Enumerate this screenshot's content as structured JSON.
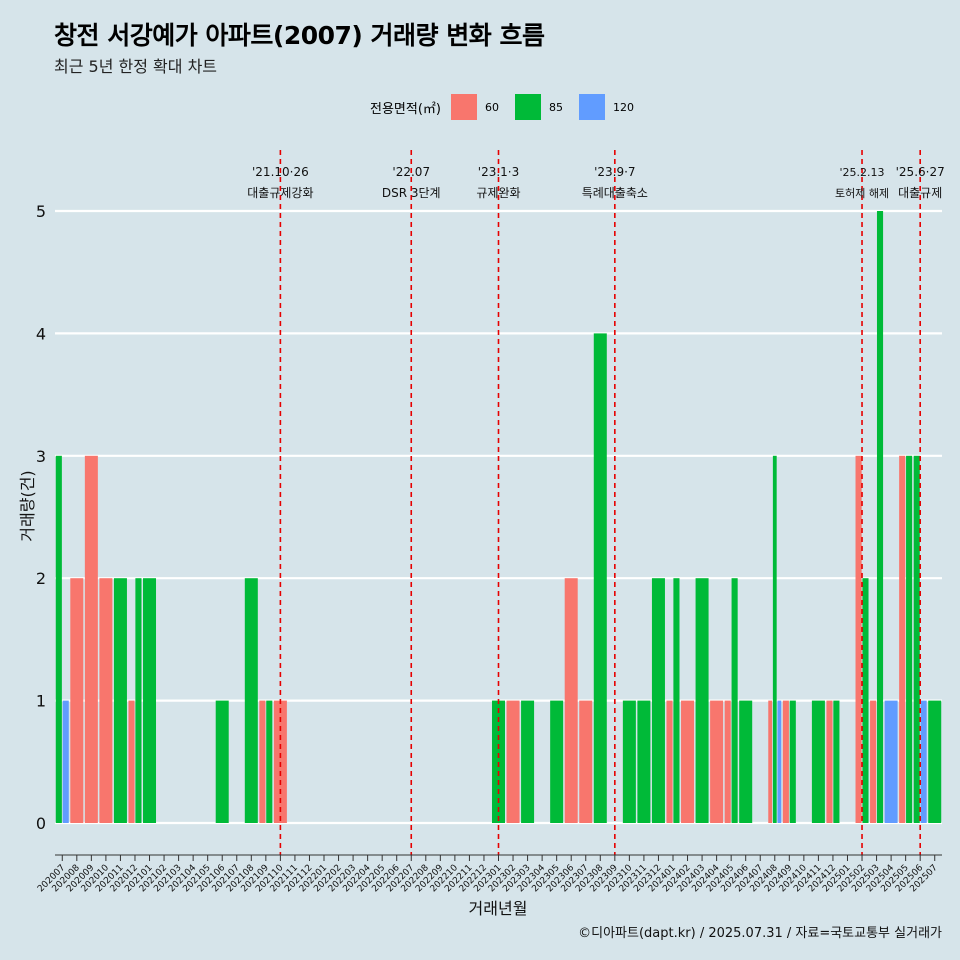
{
  "title": "창전 서강예가 아파트(2007) 거래량 변화 흐름",
  "subtitle": "최근 5년 한정 확대 차트",
  "caption": "©디아파트(dapt.kr) / 2025.07.31 / 자료=국토교통부 실거래가",
  "legend": {
    "title": "전용면적(㎡)",
    "items": [
      {
        "label": "60",
        "color": "#F8766D"
      },
      {
        "label": "85",
        "color": "#00BA38"
      },
      {
        "label": "120",
        "color": "#619CFF"
      }
    ]
  },
  "chart_data": {
    "type": "bar",
    "xlabel": "거래년월",
    "ylabel": "거래량(건)",
    "ylim": [
      0,
      5
    ],
    "y_ticks": [
      0,
      1,
      2,
      3,
      4,
      5
    ],
    "grid": true,
    "categories": [
      "202007",
      "202008",
      "202009",
      "202010",
      "202011",
      "202012",
      "202101",
      "202102",
      "202103",
      "202104",
      "202105",
      "202106",
      "202107",
      "202108",
      "202109",
      "202110",
      "202111",
      "202112",
      "202201",
      "202202",
      "202203",
      "202204",
      "202205",
      "202206",
      "202207",
      "202208",
      "202209",
      "202210",
      "202211",
      "202212",
      "202301",
      "202302",
      "202303",
      "202304",
      "202305",
      "202306",
      "202307",
      "202308",
      "202309",
      "202310",
      "202311",
      "202312",
      "202401",
      "202402",
      "202403",
      "202404",
      "202405",
      "202406",
      "202407",
      "202408",
      "202409",
      "202410",
      "202411",
      "202412",
      "202501",
      "202502",
      "202503",
      "202504",
      "202505",
      "202506",
      "202507"
    ],
    "series": [
      {
        "name": "60",
        "color": "#F8766D",
        "values": [
          0,
          2,
          3,
          2,
          0,
          1,
          0,
          0,
          0,
          0,
          0,
          0,
          0,
          0,
          1,
          1,
          0,
          0,
          0,
          0,
          0,
          0,
          0,
          0,
          0,
          0,
          0,
          0,
          0,
          0,
          0,
          1,
          0,
          0,
          0,
          2,
          1,
          0,
          0,
          0,
          0,
          0,
          1,
          1,
          0,
          1,
          1,
          0,
          0,
          1,
          1,
          0,
          0,
          1,
          0,
          3,
          1,
          0,
          3,
          0,
          0
        ]
      },
      {
        "name": "85",
        "color": "#00BA38",
        "values": [
          3,
          0,
          0,
          0,
          2,
          2,
          2,
          0,
          0,
          0,
          0,
          1,
          0,
          2,
          1,
          0,
          0,
          0,
          0,
          0,
          0,
          0,
          0,
          0,
          0,
          0,
          0,
          0,
          0,
          0,
          1,
          0,
          1,
          0,
          1,
          0,
          0,
          4,
          0,
          1,
          1,
          2,
          2,
          0,
          2,
          0,
          2,
          1,
          0,
          3,
          1,
          0,
          1,
          1,
          0,
          2,
          5,
          0,
          3,
          3,
          1
        ]
      },
      {
        "name": "120",
        "color": "#619CFF",
        "values": [
          1,
          0,
          0,
          0,
          0,
          0,
          0,
          0,
          0,
          0,
          0,
          0,
          0,
          0,
          0,
          0,
          0,
          0,
          0,
          0,
          0,
          0,
          0,
          0,
          0,
          0,
          0,
          0,
          0,
          0,
          0,
          0,
          0,
          0,
          0,
          0,
          0,
          0,
          0,
          0,
          0,
          0,
          0,
          0,
          0,
          0,
          0,
          0,
          0,
          1,
          0,
          0,
          0,
          0,
          0,
          0,
          0,
          1,
          0,
          1,
          0
        ]
      }
    ],
    "annotations": [
      {
        "at": "202110",
        "date": "'21.10·26",
        "text": "대출규제강화"
      },
      {
        "at": "202207",
        "date": "'22.07",
        "text": "DSR 3단계"
      },
      {
        "at": "202301",
        "date": "'23.1·3",
        "text": "규제완화"
      },
      {
        "at": "202309",
        "date": "'23.9·7",
        "text": "특례대출축소"
      },
      {
        "at": "202502",
        "date": "'25.2.13",
        "text": "토허제 해제"
      },
      {
        "at": "202506",
        "date": "'25.6·27",
        "text": "대출규제"
      }
    ]
  }
}
